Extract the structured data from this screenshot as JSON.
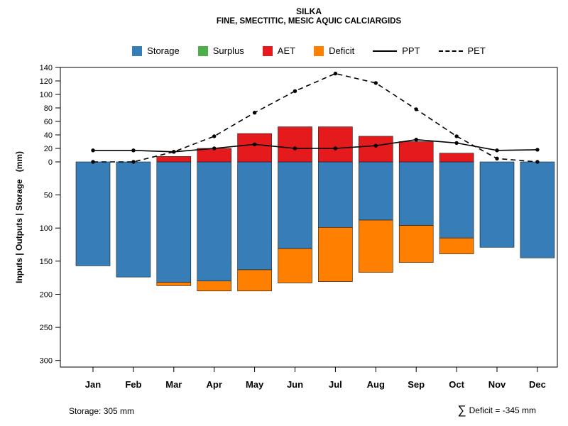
{
  "legend": [
    {
      "label": "Storage",
      "type": "box",
      "color": "#377eb8"
    },
    {
      "label": "Surplus",
      "type": "box",
      "color": "#4daf4a"
    },
    {
      "label": "AET",
      "type": "box",
      "color": "#e41a1c"
    },
    {
      "label": "Deficit",
      "type": "box",
      "color": "#ff7f00"
    },
    {
      "label": "PPT",
      "type": "line-solid",
      "color": "#000000"
    },
    {
      "label": "PET",
      "type": "line-dashed",
      "color": "#000000"
    }
  ],
  "chart_data": {
    "type": "bar",
    "title": "SILKA",
    "subtitle": "FINE, SMECTITIC, MESIC AQUIC CALCIARGIDS",
    "categories": [
      "Jan",
      "Feb",
      "Mar",
      "Apr",
      "May",
      "Jun",
      "Jul",
      "Aug",
      "Sep",
      "Oct",
      "Nov",
      "Dec"
    ],
    "series": [
      {
        "name": "Storage",
        "kind": "bar-below",
        "color": "#377eb8",
        "values": [
          157,
          174,
          182,
          180,
          163,
          131,
          99,
          88,
          96,
          115,
          129,
          145
        ]
      },
      {
        "name": "Deficit",
        "kind": "bar-below",
        "color": "#ff7f00",
        "values": [
          0,
          0,
          5,
          15,
          32,
          52,
          82,
          79,
          56,
          24,
          0,
          0
        ]
      },
      {
        "name": "AET",
        "kind": "bar-above",
        "color": "#e41a1c",
        "values": [
          0,
          0,
          8,
          20,
          42,
          52,
          52,
          38,
          30,
          13,
          0,
          0
        ]
      },
      {
        "name": "Surplus",
        "kind": "bar-above",
        "color": "#4daf4a",
        "values": [
          0,
          0,
          0,
          0,
          0,
          0,
          0,
          0,
          0,
          0,
          0,
          0
        ]
      },
      {
        "name": "PPT",
        "kind": "line-solid",
        "color": "#000000",
        "values": [
          17,
          17,
          15,
          20,
          26,
          20,
          20,
          24,
          33,
          28,
          17,
          18
        ]
      },
      {
        "name": "PET",
        "kind": "line-dashed",
        "color": "#000000",
        "values": [
          0,
          0,
          15,
          38,
          73,
          105,
          131,
          117,
          78,
          38,
          5,
          0
        ]
      }
    ],
    "y_axis": {
      "label": "Inputs | Outputs | Storage   (mm)",
      "ticks_above": [
        0,
        20,
        40,
        60,
        80,
        100,
        120,
        140
      ],
      "ticks_below": [
        50,
        100,
        150,
        200,
        250,
        300
      ],
      "max_above": 140,
      "max_below": 310
    },
    "annotations": {
      "storage_label": "Storage: 305 mm",
      "sum_symbol": "∑",
      "deficit_label": "Deficit = -345 mm"
    }
  }
}
